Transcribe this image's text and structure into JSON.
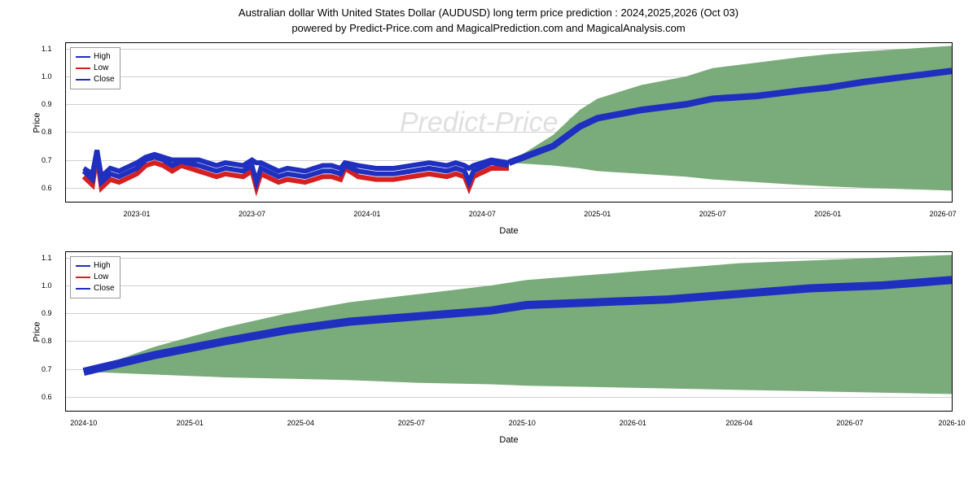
{
  "title": "Australian dollar With United States Dollar (AUDUSD) long term price prediction : 2024,2025,2026 (Oct 03)",
  "subtitle": "powered by Predict-Price.com and MagicalPrediction.com and MagicalAnalysis.com",
  "watermark": "Predict-Price.com",
  "legend": {
    "items": [
      "High",
      "Low",
      "Close"
    ],
    "colors": [
      "#1f2fbf",
      "#d62020",
      "#1f2fbf"
    ]
  },
  "chart_top": {
    "type": "line",
    "ylabel": "Price",
    "xlabel": "Date",
    "ylim": [
      0.55,
      1.12
    ],
    "yticks": [
      0.6,
      0.7,
      0.8,
      0.9,
      1.0,
      1.1
    ],
    "xticks": [
      "2023-01",
      "2023-07",
      "2024-01",
      "2024-07",
      "2025-01",
      "2025-07",
      "2026-01",
      "2026-07"
    ],
    "xlim_range": 1.0,
    "xtick_positions": [
      0.08,
      0.21,
      0.34,
      0.47,
      0.6,
      0.73,
      0.86,
      0.99
    ],
    "background_color": "#ffffff",
    "grid_color": "#d0d0d0",
    "fill_color": "#7aab7a",
    "line_color_high": "#1f2fbf",
    "line_color_low": "#d62020",
    "line_width": 1,
    "historical_start": 0.02,
    "historical_end": 0.5,
    "close_series": [
      [
        0.02,
        0.66
      ],
      [
        0.03,
        0.63
      ],
      [
        0.035,
        0.735
      ],
      [
        0.04,
        0.62
      ],
      [
        0.05,
        0.65
      ],
      [
        0.06,
        0.64
      ],
      [
        0.08,
        0.67
      ],
      [
        0.09,
        0.7
      ],
      [
        0.1,
        0.71
      ],
      [
        0.11,
        0.7
      ],
      [
        0.12,
        0.68
      ],
      [
        0.13,
        0.695
      ],
      [
        0.15,
        0.68
      ],
      [
        0.17,
        0.66
      ],
      [
        0.18,
        0.67
      ],
      [
        0.2,
        0.66
      ],
      [
        0.21,
        0.68
      ],
      [
        0.215,
        0.62
      ],
      [
        0.22,
        0.67
      ],
      [
        0.24,
        0.64
      ],
      [
        0.25,
        0.65
      ],
      [
        0.27,
        0.64
      ],
      [
        0.29,
        0.66
      ],
      [
        0.3,
        0.66
      ],
      [
        0.31,
        0.65
      ],
      [
        0.315,
        0.68
      ],
      [
        0.33,
        0.66
      ],
      [
        0.35,
        0.65
      ],
      [
        0.37,
        0.65
      ],
      [
        0.39,
        0.66
      ],
      [
        0.41,
        0.67
      ],
      [
        0.43,
        0.66
      ],
      [
        0.44,
        0.67
      ],
      [
        0.45,
        0.66
      ],
      [
        0.455,
        0.62
      ],
      [
        0.46,
        0.66
      ],
      [
        0.48,
        0.69
      ],
      [
        0.5,
        0.68
      ]
    ],
    "high_series": [
      [
        0.02,
        0.67
      ],
      [
        0.03,
        0.65
      ],
      [
        0.035,
        0.735
      ],
      [
        0.04,
        0.64
      ],
      [
        0.05,
        0.67
      ],
      [
        0.06,
        0.66
      ],
      [
        0.08,
        0.69
      ],
      [
        0.09,
        0.71
      ],
      [
        0.1,
        0.72
      ],
      [
        0.11,
        0.71
      ],
      [
        0.12,
        0.7
      ],
      [
        0.13,
        0.7
      ],
      [
        0.15,
        0.7
      ],
      [
        0.17,
        0.68
      ],
      [
        0.18,
        0.69
      ],
      [
        0.2,
        0.68
      ],
      [
        0.21,
        0.7
      ],
      [
        0.215,
        0.69
      ],
      [
        0.22,
        0.69
      ],
      [
        0.24,
        0.66
      ],
      [
        0.25,
        0.67
      ],
      [
        0.27,
        0.66
      ],
      [
        0.29,
        0.68
      ],
      [
        0.3,
        0.68
      ],
      [
        0.31,
        0.67
      ],
      [
        0.315,
        0.69
      ],
      [
        0.33,
        0.68
      ],
      [
        0.35,
        0.67
      ],
      [
        0.37,
        0.67
      ],
      [
        0.39,
        0.68
      ],
      [
        0.41,
        0.69
      ],
      [
        0.43,
        0.68
      ],
      [
        0.44,
        0.69
      ],
      [
        0.45,
        0.68
      ],
      [
        0.455,
        0.67
      ],
      [
        0.46,
        0.68
      ],
      [
        0.48,
        0.7
      ],
      [
        0.5,
        0.69
      ]
    ],
    "low_series": [
      [
        0.02,
        0.64
      ],
      [
        0.03,
        0.61
      ],
      [
        0.035,
        0.72
      ],
      [
        0.04,
        0.6
      ],
      [
        0.05,
        0.63
      ],
      [
        0.06,
        0.62
      ],
      [
        0.08,
        0.65
      ],
      [
        0.09,
        0.68
      ],
      [
        0.1,
        0.69
      ],
      [
        0.11,
        0.68
      ],
      [
        0.12,
        0.66
      ],
      [
        0.13,
        0.68
      ],
      [
        0.15,
        0.66
      ],
      [
        0.17,
        0.64
      ],
      [
        0.18,
        0.65
      ],
      [
        0.2,
        0.64
      ],
      [
        0.21,
        0.66
      ],
      [
        0.215,
        0.6
      ],
      [
        0.22,
        0.65
      ],
      [
        0.24,
        0.62
      ],
      [
        0.25,
        0.63
      ],
      [
        0.27,
        0.62
      ],
      [
        0.29,
        0.64
      ],
      [
        0.3,
        0.64
      ],
      [
        0.31,
        0.63
      ],
      [
        0.315,
        0.67
      ],
      [
        0.33,
        0.64
      ],
      [
        0.35,
        0.63
      ],
      [
        0.37,
        0.63
      ],
      [
        0.39,
        0.64
      ],
      [
        0.41,
        0.65
      ],
      [
        0.43,
        0.64
      ],
      [
        0.44,
        0.65
      ],
      [
        0.45,
        0.64
      ],
      [
        0.455,
        0.6
      ],
      [
        0.46,
        0.64
      ],
      [
        0.48,
        0.67
      ],
      [
        0.5,
        0.67
      ]
    ],
    "forecast_close": [
      [
        0.5,
        0.69
      ],
      [
        0.55,
        0.75
      ],
      [
        0.58,
        0.82
      ],
      [
        0.6,
        0.85
      ],
      [
        0.65,
        0.88
      ],
      [
        0.7,
        0.9
      ],
      [
        0.73,
        0.92
      ],
      [
        0.78,
        0.93
      ],
      [
        0.83,
        0.95
      ],
      [
        0.86,
        0.96
      ],
      [
        0.9,
        0.98
      ],
      [
        0.95,
        1.0
      ],
      [
        1.0,
        1.02
      ]
    ],
    "forecast_upper": [
      [
        0.5,
        0.69
      ],
      [
        0.55,
        0.79
      ],
      [
        0.58,
        0.88
      ],
      [
        0.6,
        0.92
      ],
      [
        0.65,
        0.97
      ],
      [
        0.7,
        1.0
      ],
      [
        0.73,
        1.03
      ],
      [
        0.78,
        1.05
      ],
      [
        0.83,
        1.07
      ],
      [
        0.86,
        1.08
      ],
      [
        0.9,
        1.09
      ],
      [
        0.95,
        1.1
      ],
      [
        1.0,
        1.11
      ]
    ],
    "forecast_lower": [
      [
        0.5,
        0.69
      ],
      [
        0.55,
        0.68
      ],
      [
        0.58,
        0.67
      ],
      [
        0.6,
        0.66
      ],
      [
        0.65,
        0.65
      ],
      [
        0.7,
        0.64
      ],
      [
        0.73,
        0.63
      ],
      [
        0.78,
        0.62
      ],
      [
        0.83,
        0.61
      ],
      [
        0.86,
        0.605
      ],
      [
        0.9,
        0.6
      ],
      [
        0.95,
        0.595
      ],
      [
        1.0,
        0.59
      ]
    ]
  },
  "chart_bottom": {
    "type": "line",
    "ylabel": "Price",
    "xlabel": "Date",
    "ylim": [
      0.55,
      1.12
    ],
    "yticks": [
      0.6,
      0.7,
      0.8,
      0.9,
      1.0,
      1.1
    ],
    "xticks": [
      "2024-10",
      "2025-01",
      "2025-04",
      "2025-07",
      "2025-10",
      "2026-01",
      "2026-04",
      "2026-07",
      "2026-10"
    ],
    "xtick_positions": [
      0.02,
      0.14,
      0.265,
      0.39,
      0.515,
      0.64,
      0.76,
      0.885,
      1.0
    ],
    "background_color": "#ffffff",
    "grid_color": "#d0d0d0",
    "fill_color": "#7aab7a",
    "line_color_high": "#1f2fbf",
    "line_color_low": "#d62020",
    "line_width": 2,
    "forecast_close": [
      [
        0.02,
        0.69
      ],
      [
        0.1,
        0.75
      ],
      [
        0.18,
        0.8
      ],
      [
        0.25,
        0.84
      ],
      [
        0.32,
        0.87
      ],
      [
        0.4,
        0.89
      ],
      [
        0.48,
        0.91
      ],
      [
        0.52,
        0.93
      ],
      [
        0.6,
        0.94
      ],
      [
        0.68,
        0.95
      ],
      [
        0.76,
        0.97
      ],
      [
        0.84,
        0.99
      ],
      [
        0.92,
        1.0
      ],
      [
        1.0,
        1.02
      ]
    ],
    "forecast_upper": [
      [
        0.02,
        0.69
      ],
      [
        0.1,
        0.78
      ],
      [
        0.18,
        0.85
      ],
      [
        0.25,
        0.9
      ],
      [
        0.32,
        0.94
      ],
      [
        0.4,
        0.97
      ],
      [
        0.48,
        1.0
      ],
      [
        0.52,
        1.02
      ],
      [
        0.6,
        1.04
      ],
      [
        0.68,
        1.06
      ],
      [
        0.76,
        1.08
      ],
      [
        0.84,
        1.09
      ],
      [
        0.92,
        1.1
      ],
      [
        1.0,
        1.11
      ]
    ],
    "forecast_lower": [
      [
        0.02,
        0.69
      ],
      [
        0.1,
        0.68
      ],
      [
        0.18,
        0.67
      ],
      [
        0.25,
        0.665
      ],
      [
        0.32,
        0.66
      ],
      [
        0.4,
        0.65
      ],
      [
        0.48,
        0.645
      ],
      [
        0.52,
        0.64
      ],
      [
        0.6,
        0.635
      ],
      [
        0.68,
        0.63
      ],
      [
        0.76,
        0.625
      ],
      [
        0.84,
        0.62
      ],
      [
        0.92,
        0.615
      ],
      [
        1.0,
        0.61
      ]
    ]
  }
}
